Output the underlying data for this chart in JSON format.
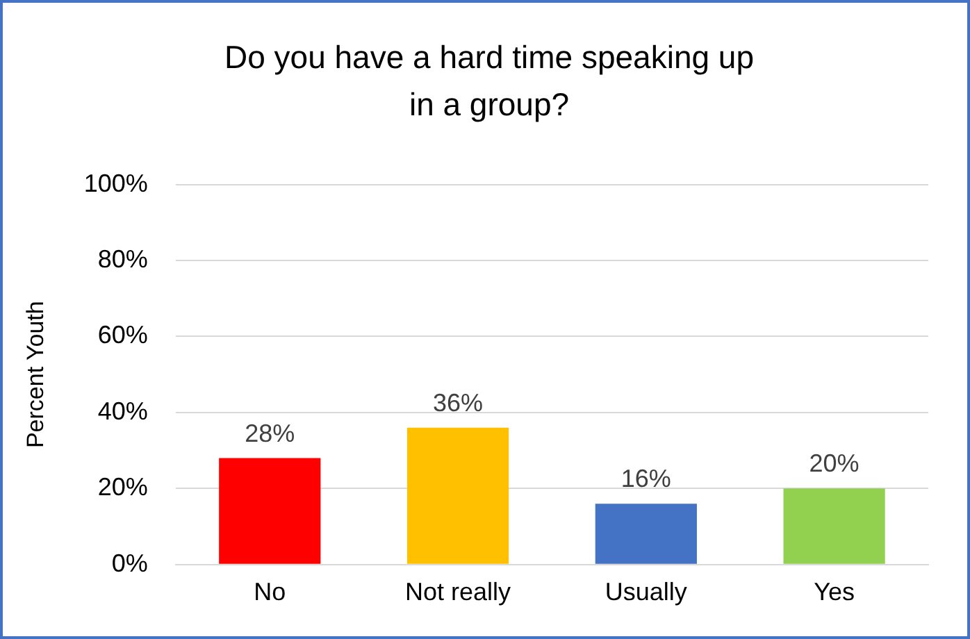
{
  "chart_data": {
    "type": "bar",
    "title": "Do you have a hard time speaking up in a group?",
    "ylabel": "Percent Youth",
    "categories": [
      "No",
      "Not really",
      "Usually",
      "Yes"
    ],
    "values": [
      28,
      36,
      16,
      20
    ],
    "colors": [
      "#ff0000",
      "#ffc000",
      "#4472c4",
      "#92d050"
    ],
    "value_labels": [
      "28%",
      "36%",
      "16%",
      "20%"
    ],
    "ylim": [
      0,
      100
    ],
    "yticks": [
      {
        "value": 0,
        "label": "0%"
      },
      {
        "value": 20,
        "label": "20%"
      },
      {
        "value": 40,
        "label": "40%"
      },
      {
        "value": 60,
        "label": "60%"
      },
      {
        "value": 80,
        "label": "80%"
      },
      {
        "value": 100,
        "label": "100%"
      }
    ],
    "grid": "y",
    "legend": false
  }
}
